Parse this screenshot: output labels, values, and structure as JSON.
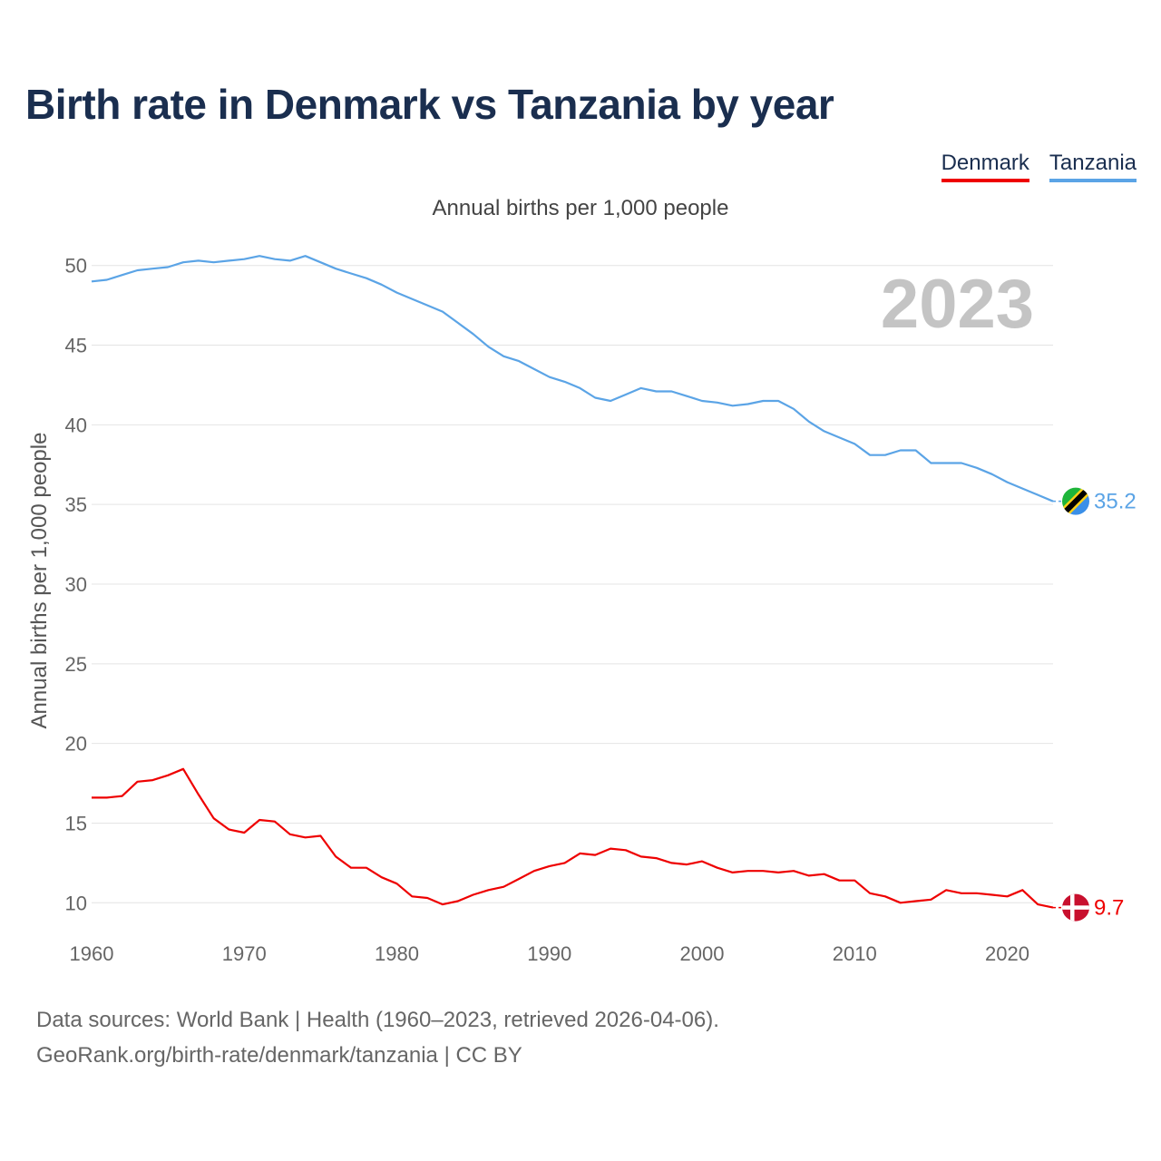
{
  "header": {
    "title": "Birth rate in Denmark vs Tanzania by year",
    "subtitle": "Annual births per 1,000 people",
    "year_badge": "2023"
  },
  "legend": [
    {
      "name": "Denmark",
      "color": "#ee0000"
    },
    {
      "name": "Tanzania",
      "color": "#5ba4e6"
    }
  ],
  "footer": {
    "line1": "Data sources: World Bank | Health (1960–2023, retrieved 2026-04-06).",
    "line2": "GeoRank.org/birth-rate/denmark/tanzania | CC BY"
  },
  "chart_data": {
    "type": "line",
    "title": "Birth rate in Denmark vs Tanzania by year",
    "xlabel": "",
    "ylabel": "Annual births per 1,000 people",
    "xlim": [
      1960,
      2023
    ],
    "ylim": [
      7,
      53
    ],
    "xticks": [
      1960,
      1970,
      1980,
      1990,
      2000,
      2010,
      2020
    ],
    "yticks": [
      10,
      15,
      20,
      25,
      30,
      35,
      40,
      45,
      50
    ],
    "grid": true,
    "legend_position": "top-right",
    "x": [
      1960,
      1961,
      1962,
      1963,
      1964,
      1965,
      1966,
      1967,
      1968,
      1969,
      1970,
      1971,
      1972,
      1973,
      1974,
      1975,
      1976,
      1977,
      1978,
      1979,
      1980,
      1981,
      1982,
      1983,
      1984,
      1985,
      1986,
      1987,
      1988,
      1989,
      1990,
      1991,
      1992,
      1993,
      1994,
      1995,
      1996,
      1997,
      1998,
      1999,
      2000,
      2001,
      2002,
      2003,
      2004,
      2005,
      2006,
      2007,
      2008,
      2009,
      2010,
      2011,
      2012,
      2013,
      2014,
      2015,
      2016,
      2017,
      2018,
      2019,
      2020,
      2021,
      2022,
      2023
    ],
    "series": [
      {
        "name": "Denmark",
        "color": "#ee0000",
        "end_label": "9.7",
        "flag": "denmark-flag",
        "values": [
          16.6,
          16.6,
          16.7,
          17.6,
          17.7,
          18.0,
          18.4,
          16.8,
          15.3,
          14.6,
          14.4,
          15.2,
          15.1,
          14.3,
          14.1,
          14.2,
          12.9,
          12.2,
          12.2,
          11.6,
          11.2,
          10.4,
          10.3,
          9.9,
          10.1,
          10.5,
          10.8,
          11.0,
          11.5,
          12.0,
          12.3,
          12.5,
          13.1,
          13.0,
          13.4,
          13.3,
          12.9,
          12.8,
          12.5,
          12.4,
          12.6,
          12.2,
          11.9,
          12.0,
          12.0,
          11.9,
          12.0,
          11.7,
          11.8,
          11.4,
          11.4,
          10.6,
          10.4,
          10.0,
          10.1,
          10.2,
          10.8,
          10.6,
          10.6,
          10.5,
          10.4,
          10.8,
          9.9,
          9.7
        ]
      },
      {
        "name": "Tanzania",
        "color": "#5ba4e6",
        "end_label": "35.2",
        "flag": "tanzania-flag",
        "values": [
          49.0,
          49.1,
          49.4,
          49.7,
          49.8,
          49.9,
          50.2,
          50.3,
          50.2,
          50.3,
          50.4,
          50.6,
          50.4,
          50.3,
          50.6,
          50.2,
          49.8,
          49.5,
          49.2,
          48.8,
          48.3,
          47.9,
          47.5,
          47.1,
          46.4,
          45.7,
          44.9,
          44.3,
          44.0,
          43.5,
          43.0,
          42.7,
          42.3,
          41.7,
          41.5,
          41.9,
          42.3,
          42.1,
          42.1,
          41.8,
          41.5,
          41.4,
          41.2,
          41.3,
          41.5,
          41.5,
          41.0,
          40.2,
          39.6,
          39.2,
          38.8,
          38.1,
          38.1,
          38.4,
          38.4,
          37.6,
          37.6,
          37.6,
          37.3,
          36.9,
          36.4,
          36.0,
          35.6,
          35.2
        ]
      }
    ]
  }
}
